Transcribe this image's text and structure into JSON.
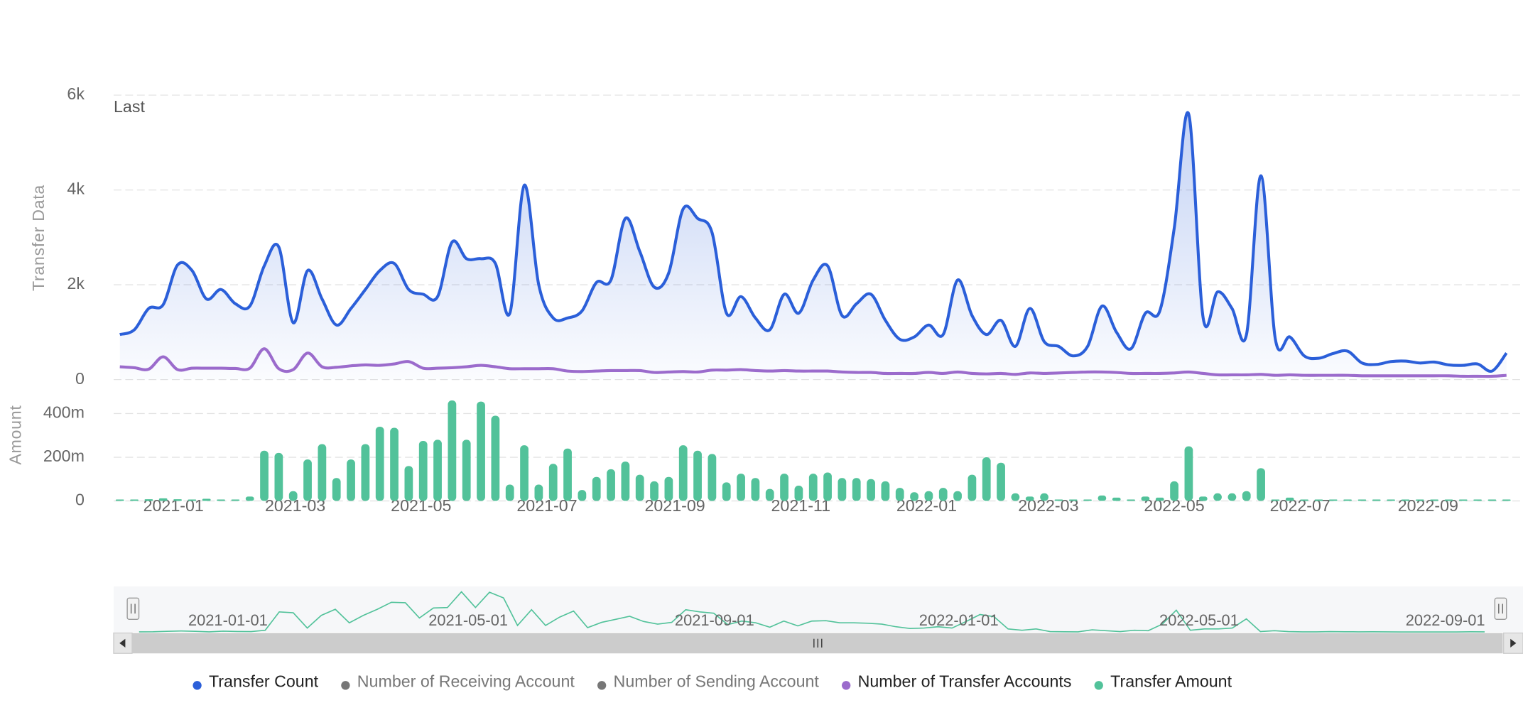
{
  "chart_data": {
    "type": "line",
    "annotation": "Last",
    "ylabel": "Transfer Data",
    "y2label": "Amount",
    "xlim": [
      "2020-12-03",
      "2022-10-17"
    ],
    "xticks": [
      "2021-01",
      "2021-03",
      "2021-05",
      "2021-07",
      "2021-09",
      "2021-11",
      "2022-01",
      "2022-03",
      "2022-05",
      "2022-07",
      "2022-09"
    ],
    "ylim": [
      0,
      6000
    ],
    "yticks": [
      0,
      {
        "value": 2000,
        "label": "2k"
      },
      {
        "value": 4000,
        "label": "4k"
      },
      {
        "value": 6000,
        "label": "6k"
      }
    ],
    "y2lim": [
      0,
      500
    ],
    "y2ticks": [
      0,
      {
        "value": 200,
        "label": "200m"
      },
      {
        "value": 400,
        "label": "400m"
      }
    ],
    "grid": true,
    "navigator_xticks": [
      "2021-01-01",
      "2021-05-01",
      "2021-09-01",
      "2022-01-01",
      "2022-05-01",
      "2022-09-01"
    ],
    "x": [
      "2020-12-06",
      "2020-12-13",
      "2020-12-20",
      "2020-12-27",
      "2021-01-03",
      "2021-01-10",
      "2021-01-17",
      "2021-01-24",
      "2021-01-31",
      "2021-02-07",
      "2021-02-14",
      "2021-02-21",
      "2021-02-28",
      "2021-03-07",
      "2021-03-14",
      "2021-03-21",
      "2021-03-28",
      "2021-04-04",
      "2021-04-11",
      "2021-04-18",
      "2021-04-25",
      "2021-05-02",
      "2021-05-09",
      "2021-05-16",
      "2021-05-23",
      "2021-05-30",
      "2021-06-06",
      "2021-06-13",
      "2021-06-20",
      "2021-06-27",
      "2021-07-04",
      "2021-07-11",
      "2021-07-18",
      "2021-07-25",
      "2021-08-01",
      "2021-08-08",
      "2021-08-15",
      "2021-08-22",
      "2021-08-29",
      "2021-09-05",
      "2021-09-12",
      "2021-09-19",
      "2021-09-26",
      "2021-10-03",
      "2021-10-10",
      "2021-10-17",
      "2021-10-24",
      "2021-10-31",
      "2021-11-07",
      "2021-11-14",
      "2021-11-21",
      "2021-11-28",
      "2021-12-05",
      "2021-12-12",
      "2021-12-19",
      "2021-12-26",
      "2022-01-02",
      "2022-01-09",
      "2022-01-16",
      "2022-01-23",
      "2022-01-30",
      "2022-02-06",
      "2022-02-13",
      "2022-02-20",
      "2022-02-27",
      "2022-03-06",
      "2022-03-13",
      "2022-03-20",
      "2022-03-27",
      "2022-04-03",
      "2022-04-10",
      "2022-04-17",
      "2022-04-24",
      "2022-05-01",
      "2022-05-08",
      "2022-05-15",
      "2022-05-22",
      "2022-05-29",
      "2022-06-05",
      "2022-06-12",
      "2022-06-19",
      "2022-06-26",
      "2022-07-03",
      "2022-07-10",
      "2022-07-17",
      "2022-07-24",
      "2022-07-31",
      "2022-08-07",
      "2022-08-14",
      "2022-08-21",
      "2022-08-28",
      "2022-09-04",
      "2022-09-11",
      "2022-09-18",
      "2022-09-25",
      "2022-10-02",
      "2022-10-09"
    ],
    "series": [
      {
        "name": "Transfer Count",
        "type": "area",
        "color": "#2b5fd9",
        "values": [
          950,
          1050,
          1500,
          1580,
          2420,
          2300,
          1700,
          1900,
          1600,
          1550,
          2400,
          2800,
          1200,
          2300,
          1700,
          1150,
          1500,
          1900,
          2300,
          2450,
          1900,
          1800,
          1750,
          2900,
          2550,
          2550,
          2450,
          1400,
          4100,
          2000,
          1300,
          1300,
          1450,
          2050,
          2100,
          3400,
          2700,
          1950,
          2250,
          3600,
          3400,
          3100,
          1400,
          1750,
          1300,
          1050,
          1800,
          1400,
          2100,
          2400,
          1350,
          1600,
          1800,
          1250,
          850,
          900,
          1150,
          950,
          2100,
          1350,
          950,
          1250,
          700,
          1500,
          800,
          700,
          500,
          700,
          1550,
          1000,
          650,
          1400,
          1450,
          3200,
          5600,
          1300,
          1850,
          1500,
          950,
          4300,
          850,
          900,
          500,
          450,
          550,
          600,
          350,
          320,
          380,
          390,
          350,
          370,
          310,
          300,
          330,
          180,
          560
        ]
      },
      {
        "name": "Number of Receiving Account",
        "type": "line",
        "color": "#777777",
        "visible": false
      },
      {
        "name": "Number of Sending Account",
        "type": "line",
        "color": "#777777",
        "visible": false
      },
      {
        "name": "Number of Transfer Accounts",
        "type": "line",
        "color": "#9b6bcc",
        "values": [
          270,
          250,
          220,
          480,
          210,
          240,
          240,
          240,
          235,
          240,
          650,
          230,
          210,
          560,
          270,
          260,
          290,
          310,
          300,
          330,
          380,
          240,
          240,
          250,
          270,
          300,
          270,
          230,
          230,
          230,
          230,
          180,
          170,
          180,
          190,
          190,
          190,
          150,
          160,
          170,
          160,
          200,
          200,
          210,
          190,
          180,
          190,
          180,
          180,
          180,
          160,
          150,
          150,
          130,
          130,
          130,
          150,
          130,
          160,
          130,
          120,
          130,
          110,
          140,
          130,
          140,
          150,
          160,
          160,
          150,
          130,
          130,
          130,
          140,
          160,
          130,
          100,
          100,
          100,
          110,
          90,
          100,
          90,
          90,
          90,
          90,
          80,
          80,
          80,
          80,
          80,
          80,
          80,
          70,
          70,
          70,
          90
        ]
      },
      {
        "name": "Transfer Amount",
        "type": "column",
        "axis": "y2",
        "color": "#52c29a",
        "values": [
          2,
          3,
          8,
          12,
          8,
          2,
          10,
          6,
          5,
          20,
          230,
          220,
          45,
          190,
          260,
          105,
          190,
          260,
          340,
          335,
          160,
          275,
          280,
          460,
          280,
          455,
          390,
          75,
          255,
          75,
          170,
          240,
          50,
          110,
          145,
          180,
          120,
          90,
          110,
          255,
          230,
          215,
          85,
          125,
          105,
          55,
          125,
          70,
          125,
          130,
          105,
          105,
          100,
          90,
          60,
          40,
          45,
          60,
          45,
          120,
          200,
          175,
          35,
          20,
          35,
          5,
          3,
          2,
          25,
          15,
          5,
          20,
          15,
          90,
          250,
          20,
          35,
          35,
          45,
          150,
          5,
          15,
          5,
          2,
          2,
          5,
          3,
          2,
          3,
          2,
          1,
          1,
          1,
          1,
          1,
          3,
          2
        ]
      }
    ]
  }
}
